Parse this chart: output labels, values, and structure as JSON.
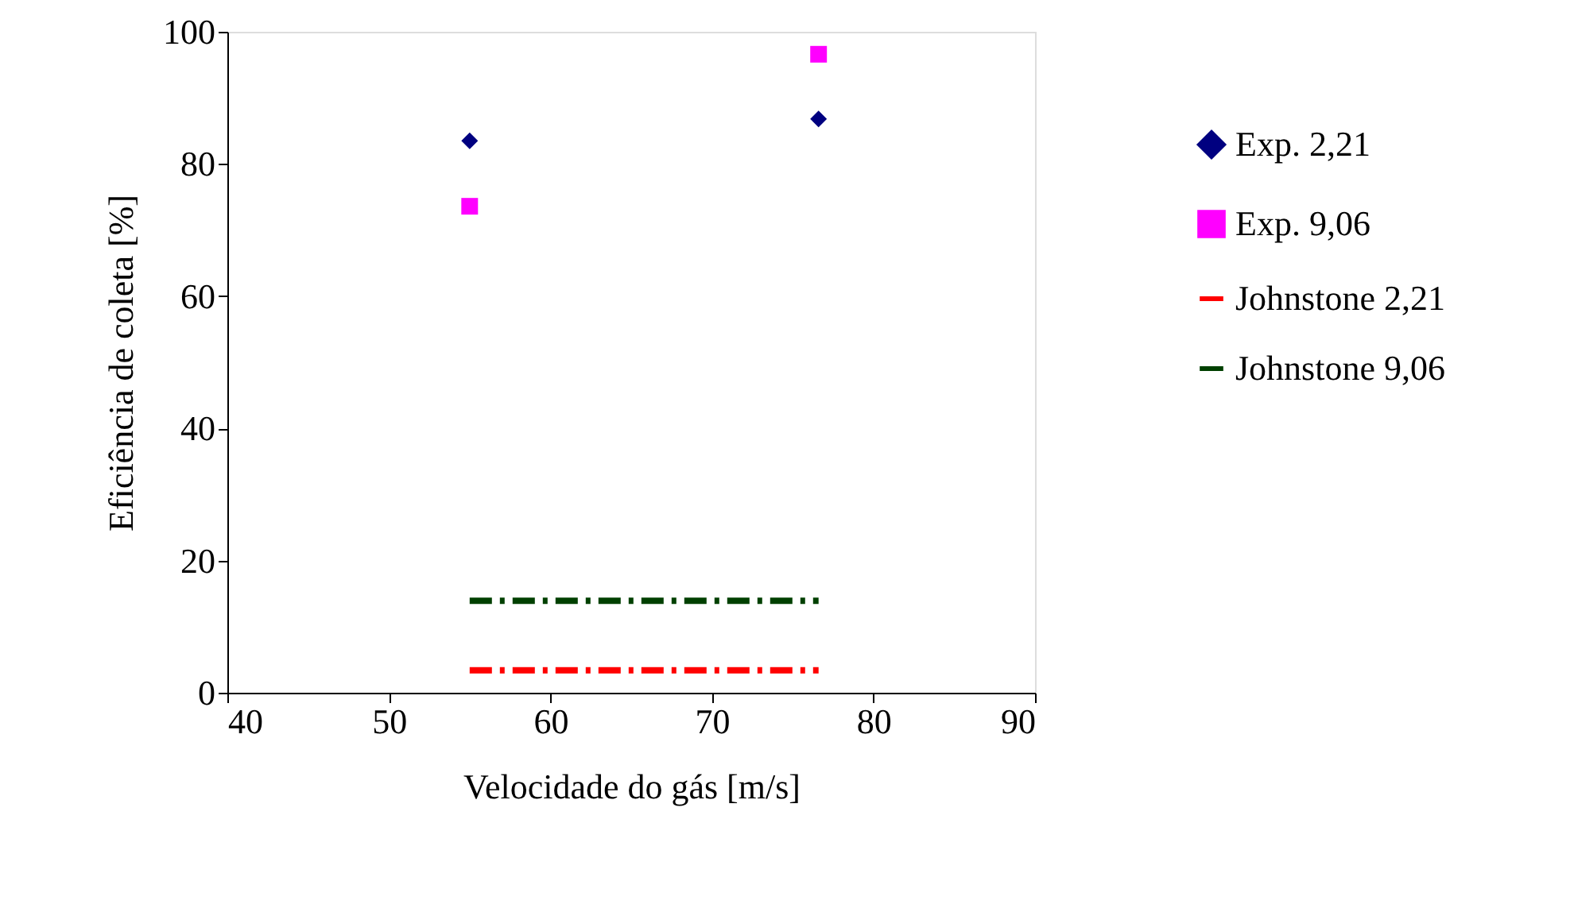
{
  "chart_data": {
    "type": "scatter",
    "xlabel": "Velocidade do gás [m/s]",
    "ylabel": "Eficiência de coleta [%]",
    "xlim": [
      40,
      90
    ],
    "xticks": [
      40,
      50,
      60,
      70,
      80,
      90
    ],
    "ylim": [
      0,
      100
    ],
    "yticks": [
      0,
      20,
      40,
      60,
      80,
      100
    ],
    "grid": false,
    "legend": "right",
    "x": [
      55,
      76.6
    ],
    "series": [
      {
        "name": "Exp. 2,21",
        "marker": "diamond",
        "color": "#000080",
        "values": [
          83.5,
          86.8
        ]
      },
      {
        "name": "Exp. 9,06",
        "marker": "square",
        "color": "#ff00ff",
        "values": [
          73.6,
          96.6
        ]
      },
      {
        "name": "Johnstone 2,21",
        "type": "line",
        "line_style": "dashed",
        "marker": "none",
        "color": "#ff0000",
        "values": [
          3.4,
          3.4
        ]
      },
      {
        "name": "Johnstone 9,06",
        "type": "line",
        "line_style": "dashed",
        "marker": "none",
        "color": "#004000",
        "values": [
          13.9,
          13.9
        ]
      }
    ]
  }
}
